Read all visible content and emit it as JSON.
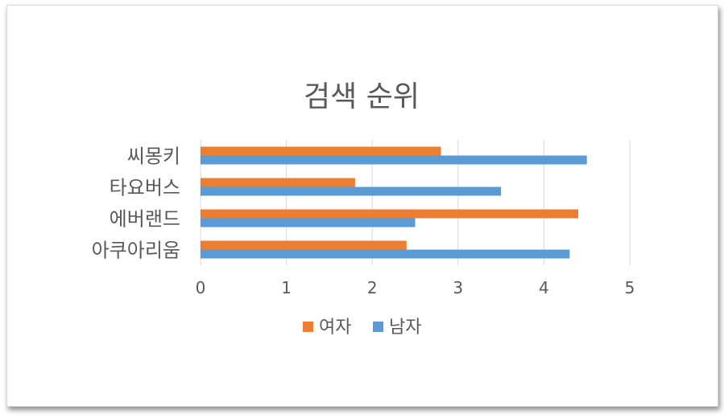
{
  "chart_data": {
    "type": "bar",
    "orientation": "horizontal",
    "title": "검색 순위",
    "categories": [
      "아쿠아리움",
      "에버랜드",
      "타요버스",
      "씨몽키"
    ],
    "series": [
      {
        "name": "여자",
        "color": "#ED7D31",
        "values": [
          2.4,
          4.4,
          1.8,
          2.8
        ]
      },
      {
        "name": "남자",
        "color": "#5B9BD5",
        "values": [
          4.3,
          2.5,
          3.5,
          4.5
        ]
      }
    ],
    "xlim": [
      0,
      5
    ],
    "x_ticks": [
      "0",
      "1",
      "2",
      "3",
      "4",
      "5"
    ],
    "grid": true,
    "legend_position": "bottom"
  }
}
